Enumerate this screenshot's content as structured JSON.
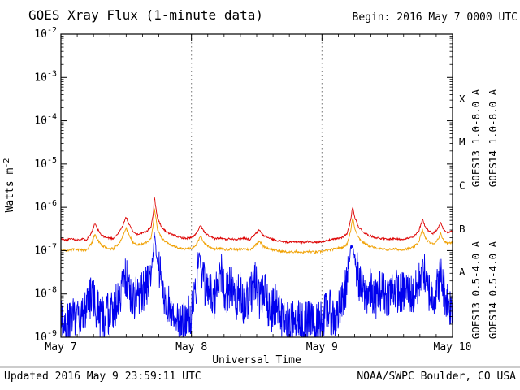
{
  "footer": {
    "updated": "Updated 2016 May  9 23:59:11 UTC",
    "source": "NOAA/SWPC Boulder, CO USA"
  },
  "chart_data": {
    "type": "line",
    "title": "GOES Xray Flux (1-minute data)",
    "begin": "Begin:  2016 May 7 0000 UTC",
    "xlabel": "Universal Time",
    "ylabel": "Watts m",
    "ylabel_exponent": "-2",
    "x_range_days": [
      0,
      3
    ],
    "y_log_range": [
      -9,
      -2
    ],
    "y_tick_exponents": [
      -2,
      -3,
      -4,
      -5,
      -6,
      -7,
      -8,
      -9
    ],
    "x_ticks": [
      {
        "label": "May 7",
        "day": 0
      },
      {
        "label": "May 8",
        "day": 1
      },
      {
        "label": "May 9",
        "day": 2
      },
      {
        "label": "May 10",
        "day": 3
      }
    ],
    "grid_days": [
      1,
      2
    ],
    "grid_color": "#777777",
    "axis_color": "#000000",
    "flare_classes": [
      {
        "label": "X",
        "log_center": -3.5
      },
      {
        "label": "M",
        "log_center": -4.5
      },
      {
        "label": "C",
        "log_center": -5.5
      },
      {
        "label": "B",
        "log_center": -6.5
      },
      {
        "label": "A",
        "log_center": -7.5
      }
    ],
    "series": [
      {
        "name": "GOES13 1.0-8.0 A",
        "key": "goes13-long",
        "color": "#dd0000",
        "z": 2,
        "samples": 900,
        "seed": 11,
        "jitter_log": 0.022,
        "points": [
          [
            0.0,
            -6.73
          ],
          [
            0.04,
            -6.76
          ],
          [
            0.08,
            -6.72
          ],
          [
            0.12,
            -6.75
          ],
          [
            0.16,
            -6.73
          ],
          [
            0.2,
            -6.74
          ],
          [
            0.24,
            -6.55
          ],
          [
            0.26,
            -6.38
          ],
          [
            0.28,
            -6.5
          ],
          [
            0.31,
            -6.65
          ],
          [
            0.35,
            -6.7
          ],
          [
            0.4,
            -6.72
          ],
          [
            0.44,
            -6.6
          ],
          [
            0.47,
            -6.45
          ],
          [
            0.5,
            -6.22
          ],
          [
            0.52,
            -6.38
          ],
          [
            0.55,
            -6.55
          ],
          [
            0.58,
            -6.62
          ],
          [
            0.62,
            -6.6
          ],
          [
            0.66,
            -6.55
          ],
          [
            0.69,
            -6.45
          ],
          [
            0.71,
            -6.1
          ],
          [
            0.715,
            -5.73
          ],
          [
            0.725,
            -5.95
          ],
          [
            0.74,
            -6.25
          ],
          [
            0.77,
            -6.45
          ],
          [
            0.8,
            -6.55
          ],
          [
            0.84,
            -6.62
          ],
          [
            0.88,
            -6.66
          ],
          [
            0.92,
            -6.7
          ],
          [
            0.96,
            -6.72
          ],
          [
            1.0,
            -6.7
          ],
          [
            1.04,
            -6.6
          ],
          [
            1.07,
            -6.42
          ],
          [
            1.1,
            -6.58
          ],
          [
            1.14,
            -6.68
          ],
          [
            1.18,
            -6.72
          ],
          [
            1.22,
            -6.71
          ],
          [
            1.26,
            -6.74
          ],
          [
            1.3,
            -6.72
          ],
          [
            1.35,
            -6.74
          ],
          [
            1.4,
            -6.71
          ],
          [
            1.45,
            -6.74
          ],
          [
            1.49,
            -6.62
          ],
          [
            1.52,
            -6.52
          ],
          [
            1.55,
            -6.65
          ],
          [
            1.6,
            -6.72
          ],
          [
            1.65,
            -6.76
          ],
          [
            1.7,
            -6.79
          ],
          [
            1.75,
            -6.81
          ],
          [
            1.8,
            -6.79
          ],
          [
            1.85,
            -6.81
          ],
          [
            1.9,
            -6.79
          ],
          [
            1.95,
            -6.81
          ],
          [
            2.0,
            -6.79
          ],
          [
            2.05,
            -6.76
          ],
          [
            2.1,
            -6.73
          ],
          [
            2.15,
            -6.7
          ],
          [
            2.19,
            -6.62
          ],
          [
            2.22,
            -6.3
          ],
          [
            2.235,
            -5.97
          ],
          [
            2.25,
            -6.22
          ],
          [
            2.28,
            -6.45
          ],
          [
            2.32,
            -6.58
          ],
          [
            2.36,
            -6.65
          ],
          [
            2.4,
            -6.69
          ],
          [
            2.45,
            -6.72
          ],
          [
            2.5,
            -6.74
          ],
          [
            2.55,
            -6.72
          ],
          [
            2.6,
            -6.74
          ],
          [
            2.65,
            -6.72
          ],
          [
            2.7,
            -6.69
          ],
          [
            2.74,
            -6.56
          ],
          [
            2.77,
            -6.27
          ],
          [
            2.79,
            -6.45
          ],
          [
            2.82,
            -6.55
          ],
          [
            2.85,
            -6.6
          ],
          [
            2.88,
            -6.52
          ],
          [
            2.91,
            -6.36
          ],
          [
            2.93,
            -6.5
          ],
          [
            2.96,
            -6.58
          ],
          [
            3.0,
            -6.55
          ]
        ]
      },
      {
        "name": "GOES14 1.0-8.0 A",
        "key": "goes14-long",
        "color": "#f0a000",
        "z": 1,
        "samples": 900,
        "seed": 23,
        "jitter_log": 0.026,
        "points": [
          [
            0.0,
            -6.98
          ],
          [
            0.05,
            -7.0
          ],
          [
            0.1,
            -6.97
          ],
          [
            0.15,
            -6.99
          ],
          [
            0.2,
            -6.98
          ],
          [
            0.24,
            -6.8
          ],
          [
            0.26,
            -6.62
          ],
          [
            0.28,
            -6.75
          ],
          [
            0.32,
            -6.9
          ],
          [
            0.36,
            -6.95
          ],
          [
            0.4,
            -6.96
          ],
          [
            0.44,
            -6.85
          ],
          [
            0.47,
            -6.7
          ],
          [
            0.5,
            -6.48
          ],
          [
            0.52,
            -6.62
          ],
          [
            0.55,
            -6.8
          ],
          [
            0.58,
            -6.87
          ],
          [
            0.62,
            -6.85
          ],
          [
            0.66,
            -6.8
          ],
          [
            0.69,
            -6.7
          ],
          [
            0.71,
            -6.35
          ],
          [
            0.715,
            -6.0
          ],
          [
            0.725,
            -6.2
          ],
          [
            0.74,
            -6.5
          ],
          [
            0.77,
            -6.7
          ],
          [
            0.8,
            -6.8
          ],
          [
            0.85,
            -6.88
          ],
          [
            0.9,
            -6.93
          ],
          [
            0.95,
            -6.96
          ],
          [
            1.0,
            -6.95
          ],
          [
            1.04,
            -6.85
          ],
          [
            1.07,
            -6.67
          ],
          [
            1.1,
            -6.83
          ],
          [
            1.14,
            -6.92
          ],
          [
            1.18,
            -6.96
          ],
          [
            1.22,
            -6.95
          ],
          [
            1.26,
            -6.98
          ],
          [
            1.3,
            -6.96
          ],
          [
            1.35,
            -6.98
          ],
          [
            1.4,
            -6.96
          ],
          [
            1.45,
            -6.98
          ],
          [
            1.49,
            -6.87
          ],
          [
            1.52,
            -6.77
          ],
          [
            1.55,
            -6.9
          ],
          [
            1.6,
            -6.96
          ],
          [
            1.65,
            -7.0
          ],
          [
            1.7,
            -7.02
          ],
          [
            1.75,
            -7.04
          ],
          [
            1.8,
            -7.02
          ],
          [
            1.85,
            -7.04
          ],
          [
            1.9,
            -7.02
          ],
          [
            1.95,
            -7.04
          ],
          [
            2.0,
            -7.02
          ],
          [
            2.05,
            -6.99
          ],
          [
            2.1,
            -6.96
          ],
          [
            2.15,
            -6.93
          ],
          [
            2.19,
            -6.86
          ],
          [
            2.22,
            -6.55
          ],
          [
            2.235,
            -6.22
          ],
          [
            2.25,
            -6.47
          ],
          [
            2.28,
            -6.7
          ],
          [
            2.32,
            -6.82
          ],
          [
            2.36,
            -6.89
          ],
          [
            2.4,
            -6.93
          ],
          [
            2.45,
            -6.96
          ],
          [
            2.5,
            -6.98
          ],
          [
            2.55,
            -6.96
          ],
          [
            2.6,
            -6.98
          ],
          [
            2.65,
            -6.96
          ],
          [
            2.7,
            -6.93
          ],
          [
            2.74,
            -6.8
          ],
          [
            2.77,
            -6.52
          ],
          [
            2.79,
            -6.7
          ],
          [
            2.82,
            -6.8
          ],
          [
            2.85,
            -6.85
          ],
          [
            2.88,
            -6.77
          ],
          [
            2.91,
            -6.61
          ],
          [
            2.93,
            -6.75
          ],
          [
            2.96,
            -6.83
          ],
          [
            3.0,
            -6.8
          ]
        ]
      },
      {
        "name": "GOES13 0.5-4.0 A",
        "key": "goes13-short",
        "color": "#0000ee",
        "z": 4,
        "samples": 1300,
        "seed": 5,
        "jitter_log": 0.5,
        "jitter_taper_above": -7.4,
        "jitter_taper_factor": 0.22,
        "points": [
          [
            0.0,
            -8.55
          ],
          [
            0.05,
            -8.7
          ],
          [
            0.1,
            -8.45
          ],
          [
            0.15,
            -8.6
          ],
          [
            0.2,
            -8.3
          ],
          [
            0.24,
            -7.95
          ],
          [
            0.26,
            -8.2
          ],
          [
            0.3,
            -8.55
          ],
          [
            0.35,
            -8.5
          ],
          [
            0.4,
            -8.35
          ],
          [
            0.44,
            -8.1
          ],
          [
            0.47,
            -7.85
          ],
          [
            0.5,
            -7.6
          ],
          [
            0.52,
            -7.9
          ],
          [
            0.55,
            -8.15
          ],
          [
            0.6,
            -8.0
          ],
          [
            0.65,
            -7.85
          ],
          [
            0.69,
            -7.5
          ],
          [
            0.71,
            -7.0
          ],
          [
            0.715,
            -6.58
          ],
          [
            0.73,
            -7.05
          ],
          [
            0.76,
            -7.6
          ],
          [
            0.8,
            -8.1
          ],
          [
            0.85,
            -8.4
          ],
          [
            0.9,
            -8.6
          ],
          [
            0.95,
            -8.7
          ],
          [
            1.0,
            -8.4
          ],
          [
            1.04,
            -7.7
          ],
          [
            1.06,
            -7.05
          ],
          [
            1.08,
            -7.5
          ],
          [
            1.11,
            -8.0
          ],
          [
            1.14,
            -7.8
          ],
          [
            1.17,
            -8.15
          ],
          [
            1.2,
            -7.9
          ],
          [
            1.23,
            -7.55
          ],
          [
            1.26,
            -8.05
          ],
          [
            1.3,
            -7.8
          ],
          [
            1.33,
            -8.25
          ],
          [
            1.37,
            -7.9
          ],
          [
            1.4,
            -8.35
          ],
          [
            1.45,
            -8.05
          ],
          [
            1.49,
            -7.75
          ],
          [
            1.52,
            -8.15
          ],
          [
            1.56,
            -7.9
          ],
          [
            1.6,
            -8.45
          ],
          [
            1.65,
            -8.2
          ],
          [
            1.7,
            -8.55
          ],
          [
            1.75,
            -8.75
          ],
          [
            1.8,
            -8.55
          ],
          [
            1.85,
            -8.7
          ],
          [
            1.9,
            -8.6
          ],
          [
            1.95,
            -8.75
          ],
          [
            2.0,
            -8.55
          ],
          [
            2.05,
            -8.35
          ],
          [
            2.1,
            -8.6
          ],
          [
            2.15,
            -8.25
          ],
          [
            2.18,
            -7.9
          ],
          [
            2.22,
            -7.0
          ],
          [
            2.235,
            -6.82
          ],
          [
            2.26,
            -7.35
          ],
          [
            2.29,
            -7.8
          ],
          [
            2.33,
            -8.05
          ],
          [
            2.37,
            -7.9
          ],
          [
            2.4,
            -8.15
          ],
          [
            2.45,
            -7.9
          ],
          [
            2.5,
            -8.05
          ],
          [
            2.55,
            -7.85
          ],
          [
            2.6,
            -8.0
          ],
          [
            2.65,
            -7.9
          ],
          [
            2.7,
            -8.05
          ],
          [
            2.74,
            -7.8
          ],
          [
            2.77,
            -7.25
          ],
          [
            2.8,
            -7.85
          ],
          [
            2.84,
            -8.05
          ],
          [
            2.88,
            -7.9
          ],
          [
            2.91,
            -7.55
          ],
          [
            2.94,
            -8.0
          ],
          [
            2.97,
            -8.2
          ],
          [
            3.0,
            -8.4
          ]
        ]
      },
      {
        "name": "GOES14 0.5-4.0 A",
        "key": "goes14-short",
        "color": "#9900cc",
        "z": 3,
        "samples": 0,
        "seed": 1,
        "jitter_log": 0,
        "points": []
      }
    ]
  }
}
